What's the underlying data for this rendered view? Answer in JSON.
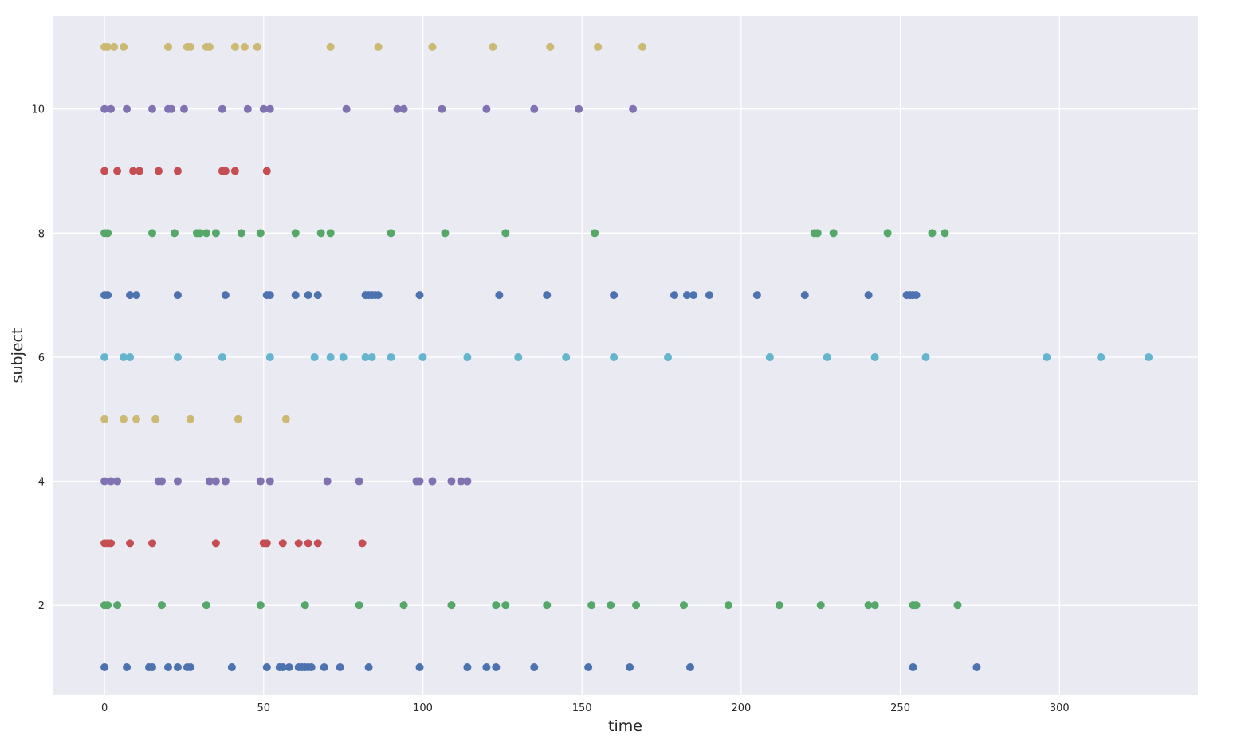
{
  "chart_data": {
    "type": "scatter",
    "xlabel": "time",
    "ylabel": "subject",
    "xlim": [
      -16.3,
      343.5
    ],
    "ylim": [
      0.55,
      11.5
    ],
    "xticks": [
      0,
      50,
      100,
      150,
      200,
      250,
      300
    ],
    "yticks": [
      2,
      4,
      6,
      8,
      10
    ],
    "grid": true,
    "background": "#eaeaf2",
    "grid_color": "#ffffff",
    "colors": [
      "#4c72b0",
      "#55a868",
      "#c44e52",
      "#8172b2",
      "#ccb974",
      "#64b5cd"
    ],
    "series": [
      {
        "subject": 1,
        "color": "#4c72b0",
        "x": [
          0,
          7,
          14,
          15,
          20,
          23,
          26,
          27,
          40,
          51,
          55,
          56,
          58,
          61,
          62,
          63,
          64,
          65,
          69,
          74,
          83,
          99,
          114,
          120,
          123,
          135,
          152,
          165,
          184,
          254,
          274
        ]
      },
      {
        "subject": 2,
        "color": "#55a868",
        "x": [
          0,
          1,
          4,
          18,
          32,
          49,
          63,
          80,
          94,
          109,
          123,
          126,
          139,
          153,
          159,
          167,
          182,
          196,
          212,
          225,
          240,
          242,
          254,
          255,
          268
        ]
      },
      {
        "subject": 3,
        "color": "#c44e52",
        "x": [
          0,
          1,
          2,
          8,
          15,
          35,
          50,
          51,
          56,
          61,
          64,
          67,
          81
        ]
      },
      {
        "subject": 4,
        "color": "#8172b2",
        "x": [
          0,
          2,
          4,
          17,
          18,
          23,
          33,
          35,
          38,
          49,
          52,
          70,
          80,
          98,
          99,
          103,
          109,
          112,
          114
        ]
      },
      {
        "subject": 5,
        "color": "#ccb974",
        "x": [
          0,
          6,
          10,
          16,
          27,
          42,
          57
        ]
      },
      {
        "subject": 6,
        "color": "#64b5cd",
        "x": [
          0,
          6,
          8,
          23,
          37,
          52,
          66,
          71,
          75,
          82,
          84,
          90,
          100,
          114,
          130,
          145,
          160,
          177,
          209,
          227,
          242,
          258,
          296,
          313,
          328
        ]
      },
      {
        "subject": 7,
        "color": "#4c72b0",
        "x": [
          0,
          1,
          8,
          10,
          23,
          38,
          51,
          52,
          60,
          64,
          67,
          82,
          83,
          84,
          85,
          86,
          99,
          124,
          139,
          160,
          179,
          183,
          185,
          190,
          205,
          220,
          240,
          252,
          253,
          254,
          255
        ]
      },
      {
        "subject": 8,
        "color": "#55a868",
        "x": [
          0,
          1,
          15,
          22,
          29,
          30,
          32,
          35,
          43,
          49,
          60,
          68,
          71,
          90,
          107,
          126,
          154,
          223,
          224,
          229,
          246,
          260,
          264
        ]
      },
      {
        "subject": 9,
        "color": "#c44e52",
        "x": [
          0,
          4,
          9,
          11,
          17,
          23,
          37,
          38,
          41,
          51
        ]
      },
      {
        "subject": 10,
        "color": "#8172b2",
        "x": [
          0,
          2,
          7,
          15,
          20,
          21,
          25,
          37,
          45,
          50,
          52,
          76,
          92,
          94,
          106,
          120,
          135,
          149,
          166
        ]
      },
      {
        "subject": 11,
        "color": "#ccb974",
        "x": [
          0,
          1,
          3,
          6,
          20,
          26,
          27,
          32,
          33,
          41,
          44,
          48,
          71,
          86,
          103,
          122,
          140,
          155,
          169
        ]
      }
    ]
  }
}
